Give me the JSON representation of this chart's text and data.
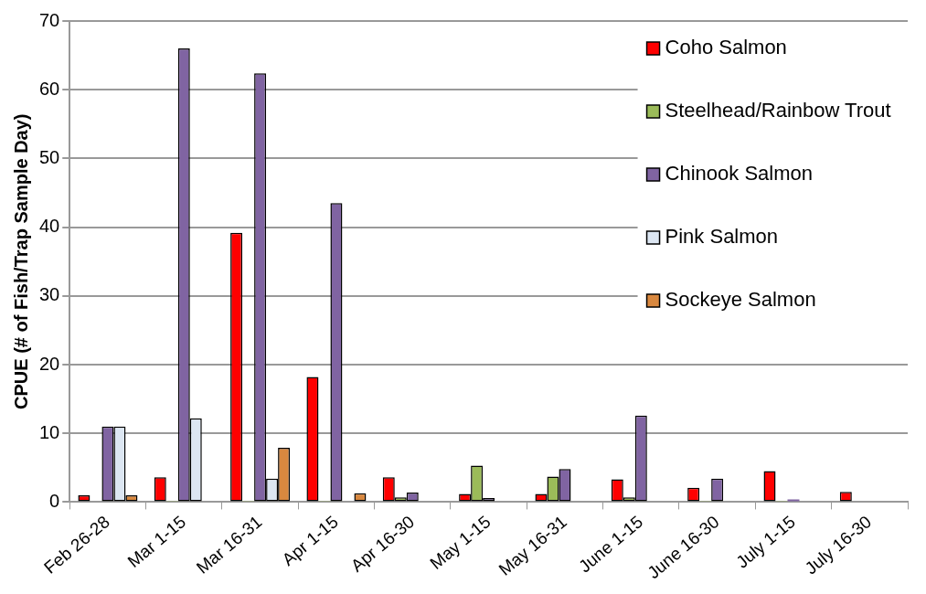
{
  "chart_data": {
    "type": "bar",
    "ylabel": "CPUE (# of Fish/Trap Sample Day)",
    "categories": [
      "Feb 26-28",
      "Mar 1-15",
      "Mar 16-31",
      "Apr 1-15",
      "Apr 16-30",
      "May 1-15",
      "May 16-31",
      "June 1-15",
      "June 16-30",
      "July 1-15",
      "July 16-30"
    ],
    "series": [
      {
        "name": "Coho Salmon",
        "color": "#ff0000",
        "values": [
          1.0,
          3.6,
          39.2,
          18.2,
          3.6,
          1.2,
          1.2,
          3.3,
          2.1,
          4.5,
          1.5
        ]
      },
      {
        "name": "Steelhead/Rainbow Trout",
        "color": "#9bbb59",
        "values": [
          0,
          0.1,
          0.1,
          0.1,
          0.7,
          5.3,
          3.7,
          0.7,
          0.1,
          0.1,
          0
        ]
      },
      {
        "name": "Chinook Salmon",
        "color": "#8064a2",
        "values": [
          11,
          66,
          62.4,
          43.5,
          1.4,
          0.6,
          4.8,
          12.6,
          3.4,
          0.4,
          0
        ]
      },
      {
        "name": "Pink Salmon",
        "color": "#dce6f2",
        "values": [
          11,
          12.2,
          3.4,
          0,
          0,
          0,
          0,
          0,
          0,
          0,
          0
        ]
      },
      {
        "name": "Sockeye Salmon",
        "color": "#d9883f",
        "values": [
          1.0,
          0,
          7.9,
          1.3,
          0,
          0,
          0,
          0,
          0,
          0,
          0
        ]
      }
    ],
    "ylim": [
      0,
      70
    ],
    "yticks": [
      0,
      10,
      20,
      30,
      40,
      50,
      60,
      70
    ],
    "grid": "y",
    "legend": "top right"
  }
}
